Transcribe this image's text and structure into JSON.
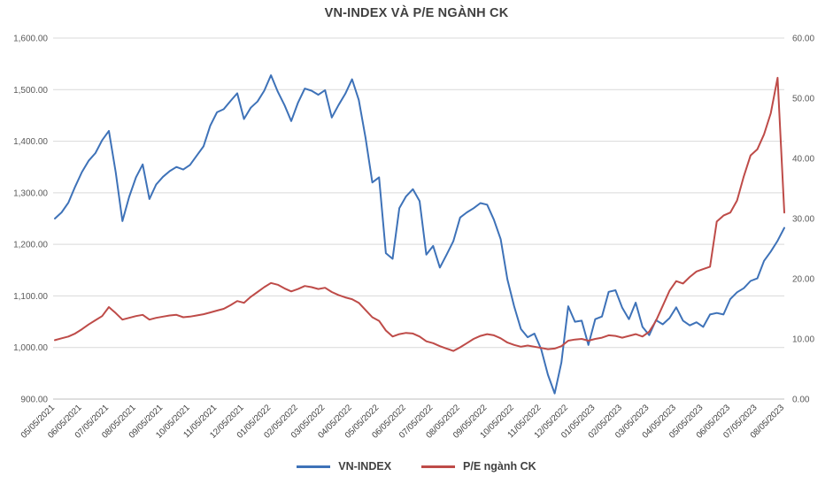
{
  "chart_data": {
    "type": "line",
    "title": "VN-INDEX VÀ P/E NGÀNH CK",
    "grid": true,
    "legend_position": "bottom",
    "x_tick_labels": [
      "05/05/2021",
      "06/05/2021",
      "07/05/2021",
      "08/05/2021",
      "09/05/2021",
      "10/05/2021",
      "11/05/2021",
      "12/05/2021",
      "01/05/2022",
      "02/05/2022",
      "03/05/2022",
      "04/05/2022",
      "05/05/2022",
      "06/05/2022",
      "07/05/2022",
      "08/05/2022",
      "09/05/2022",
      "10/05/2022",
      "11/05/2022",
      "12/05/2022",
      "01/05/2023",
      "02/05/2023",
      "03/05/2023",
      "04/05/2023",
      "05/05/2023",
      "06/05/2023",
      "07/05/2023",
      "08/05/2023"
    ],
    "left_axis": {
      "min": 900,
      "max": 1600,
      "ticks": [
        900,
        1000,
        1100,
        1200,
        1300,
        1400,
        1500,
        1600
      ],
      "tick_labels": [
        "900.00",
        "1,000.00",
        "1,100.00",
        "1,200.00",
        "1,300.00",
        "1,400.00",
        "1,500.00",
        "1,600.00"
      ]
    },
    "right_axis": {
      "min": 0,
      "max": 60,
      "ticks": [
        0,
        10,
        20,
        30,
        40,
        50,
        60
      ],
      "tick_labels": [
        "0.00",
        "10.00",
        "20.00",
        "30.00",
        "40.00",
        "50.00",
        "60.00"
      ]
    },
    "series": [
      {
        "name": "VN-INDEX",
        "axis": "left",
        "color": "#3E72B8",
        "values": [
          1250,
          1262,
          1281,
          1312,
          1340,
          1362,
          1377,
          1402,
          1420,
          1340,
          1245,
          1292,
          1330,
          1355,
          1288,
          1316,
          1331,
          1342,
          1350,
          1345,
          1354,
          1372,
          1390,
          1430,
          1456,
          1462,
          1478,
          1493,
          1443,
          1465,
          1477,
          1498,
          1528,
          1496,
          1470,
          1439,
          1475,
          1502,
          1498,
          1490,
          1499,
          1446,
          1470,
          1492,
          1520,
          1480,
          1406,
          1320,
          1330,
          1183,
          1172,
          1270,
          1293,
          1307,
          1284,
          1180,
          1197,
          1155,
          1180,
          1206,
          1252,
          1262,
          1270,
          1280,
          1277,
          1248,
          1210,
          1132,
          1080,
          1036,
          1020,
          1027,
          997,
          947,
          911,
          971,
          1080,
          1050,
          1052,
          1005,
          1055,
          1060,
          1108,
          1111,
          1077,
          1055,
          1087,
          1040,
          1024,
          1053,
          1045,
          1057,
          1078,
          1052,
          1043,
          1049,
          1040,
          1064,
          1067,
          1064,
          1094,
          1107,
          1115,
          1129,
          1134,
          1168,
          1186,
          1207,
          1232
        ]
      },
      {
        "name": "P/E ngành CK",
        "axis": "right",
        "color": "#BE4B48",
        "values": [
          9.8,
          10.1,
          10.4,
          10.9,
          11.6,
          12.4,
          13.1,
          13.8,
          15.3,
          14.3,
          13.2,
          13.5,
          13.8,
          14.0,
          13.2,
          13.5,
          13.7,
          13.9,
          14.0,
          13.6,
          13.7,
          13.9,
          14.1,
          14.4,
          14.7,
          15.0,
          15.6,
          16.3,
          16.0,
          17.0,
          17.8,
          18.6,
          19.3,
          19.0,
          18.4,
          17.9,
          18.3,
          18.8,
          18.6,
          18.3,
          18.5,
          17.8,
          17.3,
          16.9,
          16.6,
          16.0,
          14.8,
          13.6,
          13.0,
          11.4,
          10.4,
          10.8,
          11.0,
          10.9,
          10.4,
          9.6,
          9.3,
          8.8,
          8.4,
          8.0,
          8.6,
          9.3,
          10.0,
          10.5,
          10.8,
          10.6,
          10.1,
          9.4,
          9.0,
          8.7,
          8.9,
          8.7,
          8.5,
          8.3,
          8.4,
          8.8,
          9.7,
          9.9,
          10.0,
          9.7,
          10.0,
          10.2,
          10.6,
          10.5,
          10.2,
          10.5,
          10.8,
          10.4,
          11.2,
          13.0,
          15.5,
          18.0,
          19.6,
          19.2,
          20.3,
          21.2,
          21.6,
          22.0,
          29.5,
          30.5,
          31.0,
          33.0,
          37.0,
          40.5,
          41.5,
          44.0,
          47.5,
          53.4,
          31.0
        ]
      }
    ]
  }
}
